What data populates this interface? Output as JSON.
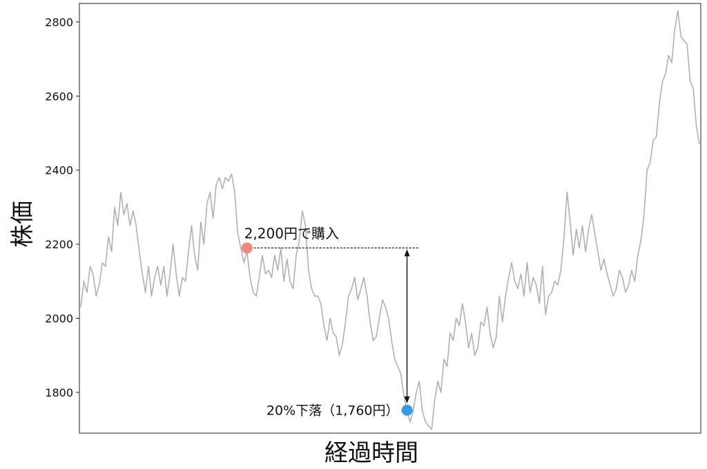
{
  "chart_data": {
    "type": "line",
    "title": "",
    "xlabel": "経過時間",
    "ylabel": "株価",
    "ylim": [
      1690,
      2850
    ],
    "yticks": [
      1800,
      2000,
      2200,
      2400,
      2600,
      2800
    ],
    "grid": false,
    "line_color": "#b0b0b0",
    "series": [
      {
        "values": [
          2030,
          2100,
          2070,
          2140,
          2120,
          2060,
          2090,
          2150,
          2140,
          2220,
          2180,
          2300,
          2250,
          2340,
          2280,
          2310,
          2250,
          2290,
          2250,
          2180,
          2120,
          2070,
          2140,
          2060,
          2110,
          2140,
          2090,
          2140,
          2060,
          2120,
          2200,
          2120,
          2060,
          2110,
          2100,
          2180,
          2250,
          2170,
          2130,
          2260,
          2200,
          2310,
          2340,
          2270,
          2360,
          2380,
          2350,
          2380,
          2370,
          2390,
          2340,
          2230,
          2190,
          2150,
          2180,
          2110,
          2070,
          2060,
          2110,
          2170,
          2120,
          2130,
          2110,
          2170,
          2130,
          2190,
          2100,
          2160,
          2100,
          2080,
          2170,
          2210,
          2290,
          2250,
          2130,
          2080,
          2060,
          2060,
          2040,
          1980,
          1940,
          2000,
          1960,
          1950,
          1900,
          1930,
          1990,
          2060,
          2080,
          2110,
          2050,
          2080,
          2110,
          2060,
          1990,
          1940,
          1950,
          2000,
          2050,
          2030,
          2000,
          1940,
          1890,
          1870,
          1850,
          1790,
          1750,
          1720,
          1750,
          1800,
          1830,
          1750,
          1720,
          1710,
          1700,
          1780,
          1830,
          1800,
          1890,
          1870,
          1960,
          1940,
          2000,
          1980,
          2040,
          1990,
          1920,
          1960,
          1900,
          1920,
          1990,
          1980,
          2030,
          1960,
          1920,
          1950,
          2060,
          1990,
          2060,
          2110,
          2150,
          2100,
          2080,
          2120,
          2060,
          2150,
          2070,
          2110,
          2090,
          2040,
          2140,
          2010,
          2060,
          2070,
          2100,
          2090,
          2130,
          2220,
          2340,
          2260,
          2170,
          2240,
          2190,
          2250,
          2180,
          2240,
          2280,
          2230,
          2180,
          2130,
          2160,
          2120,
          2090,
          2060,
          2080,
          2130,
          2110,
          2070,
          2090,
          2130,
          2100,
          2170,
          2210,
          2280,
          2400,
          2420,
          2480,
          2490,
          2580,
          2640,
          2660,
          2710,
          2690,
          2780,
          2830,
          2760,
          2750,
          2740,
          2640,
          2620,
          2520,
          2470
        ]
      }
    ],
    "annotations": {
      "buy_label": "2,200円で購入",
      "buy_point": {
        "x": 54,
        "y": 2190
      },
      "buy_color": "#f0897d",
      "drop_label": "20%下落（1,760円）",
      "drop_point": {
        "x": 106,
        "y": 1752
      },
      "drop_color": "#3a9ae8"
    }
  }
}
